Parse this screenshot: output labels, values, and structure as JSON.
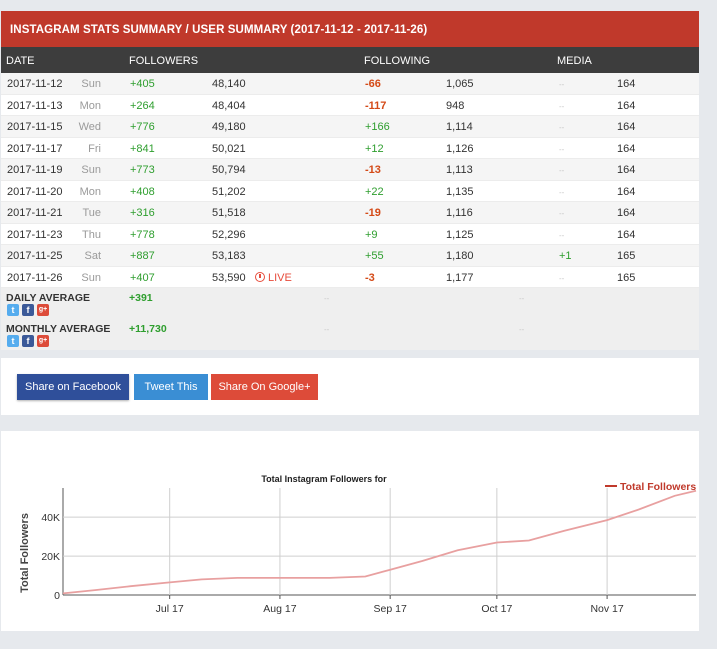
{
  "title": "INSTAGRAM STATS SUMMARY / USER SUMMARY (2017-11-12 - 2017-11-26)",
  "columns": {
    "date": "DATE",
    "followers": "FOLLOWERS",
    "following": "FOLLOWING",
    "media": "MEDIA"
  },
  "rows": [
    {
      "date": "2017-11-12",
      "day": "Sun",
      "f_change": "+405",
      "f_total": "48,140",
      "live": "",
      "g_change": "-66",
      "g_sign": "neg",
      "g_total": "1,065",
      "m_change": "--",
      "m_sign": "dash",
      "m_total": "164"
    },
    {
      "date": "2017-11-13",
      "day": "Mon",
      "f_change": "+264",
      "f_total": "48,404",
      "live": "",
      "g_change": "-117",
      "g_sign": "neg",
      "g_total": "948",
      "m_change": "--",
      "m_sign": "dash",
      "m_total": "164"
    },
    {
      "date": "2017-11-15",
      "day": "Wed",
      "f_change": "+776",
      "f_total": "49,180",
      "live": "",
      "g_change": "+166",
      "g_sign": "pos",
      "g_total": "1,114",
      "m_change": "--",
      "m_sign": "dash",
      "m_total": "164"
    },
    {
      "date": "2017-11-17",
      "day": "Fri",
      "f_change": "+841",
      "f_total": "50,021",
      "live": "",
      "g_change": "+12",
      "g_sign": "pos",
      "g_total": "1,126",
      "m_change": "--",
      "m_sign": "dash",
      "m_total": "164"
    },
    {
      "date": "2017-11-19",
      "day": "Sun",
      "f_change": "+773",
      "f_total": "50,794",
      "live": "",
      "g_change": "-13",
      "g_sign": "neg",
      "g_total": "1,113",
      "m_change": "--",
      "m_sign": "dash",
      "m_total": "164"
    },
    {
      "date": "2017-11-20",
      "day": "Mon",
      "f_change": "+408",
      "f_total": "51,202",
      "live": "",
      "g_change": "+22",
      "g_sign": "pos",
      "g_total": "1,135",
      "m_change": "--",
      "m_sign": "dash",
      "m_total": "164"
    },
    {
      "date": "2017-11-21",
      "day": "Tue",
      "f_change": "+316",
      "f_total": "51,518",
      "live": "",
      "g_change": "-19",
      "g_sign": "neg",
      "g_total": "1,116",
      "m_change": "--",
      "m_sign": "dash",
      "m_total": "164"
    },
    {
      "date": "2017-11-23",
      "day": "Thu",
      "f_change": "+778",
      "f_total": "52,296",
      "live": "",
      "g_change": "+9",
      "g_sign": "pos",
      "g_total": "1,125",
      "m_change": "--",
      "m_sign": "dash",
      "m_total": "164"
    },
    {
      "date": "2017-11-25",
      "day": "Sat",
      "f_change": "+887",
      "f_total": "53,183",
      "live": "",
      "g_change": "+55",
      "g_sign": "pos",
      "g_total": "1,180",
      "m_change": "+1",
      "m_sign": "pos",
      "m_total": "165"
    },
    {
      "date": "2017-11-26",
      "day": "Sun",
      "f_change": "+407",
      "f_total": "53,590",
      "live": "LIVE",
      "g_change": "-3",
      "g_sign": "neg",
      "g_total": "1,177",
      "m_change": "--",
      "m_sign": "dash",
      "m_total": "165"
    }
  ],
  "daily_average": {
    "label": "DAILY AVERAGE",
    "followers": "+391",
    "following": "--",
    "media": "--"
  },
  "monthly_average": {
    "label": "MONTHLY AVERAGE",
    "followers": "+11,730",
    "following": "--",
    "media": "--"
  },
  "social_icons": [
    "twitter-icon",
    "facebook-icon",
    "google-plus-icon"
  ],
  "share": {
    "facebook": "Share on Facebook",
    "twitter": "Tweet This",
    "google": "Share On Google+"
  },
  "colors": {
    "header": "#c0392b",
    "positive": "#2e9e2e",
    "negative": "#d44a17",
    "line": "#e8a0a0",
    "legend": "#c0392b"
  },
  "chart_data": {
    "type": "line",
    "title": "Total Instagram Followers for",
    "ylabel": "Total Followers",
    "xlabel": "",
    "x_ticks": [
      "Jul 17",
      "Aug 17",
      "Sep 17",
      "Oct 17",
      "Nov 17"
    ],
    "y_ticks": [
      "0",
      "20K",
      "40K"
    ],
    "ylim": [
      0,
      55000
    ],
    "xlim": [
      "2017-06-01",
      "2017-11-26"
    ],
    "grid": true,
    "legend_position": "top-right",
    "series": [
      {
        "name": "Total Followers",
        "points": [
          [
            "2017-06-01",
            800
          ],
          [
            "2017-06-10",
            2500
          ],
          [
            "2017-06-20",
            4500
          ],
          [
            "2017-07-01",
            6500
          ],
          [
            "2017-07-10",
            8000
          ],
          [
            "2017-07-20",
            8800
          ],
          [
            "2017-08-01",
            8800
          ],
          [
            "2017-08-15",
            8800
          ],
          [
            "2017-08-25",
            9500
          ],
          [
            "2017-09-01",
            13000
          ],
          [
            "2017-09-10",
            17500
          ],
          [
            "2017-09-20",
            23000
          ],
          [
            "2017-10-01",
            27000
          ],
          [
            "2017-10-10",
            28000
          ],
          [
            "2017-10-20",
            33000
          ],
          [
            "2017-11-01",
            38500
          ],
          [
            "2017-11-10",
            44000
          ],
          [
            "2017-11-20",
            51000
          ],
          [
            "2017-11-26",
            53590
          ]
        ]
      }
    ]
  }
}
